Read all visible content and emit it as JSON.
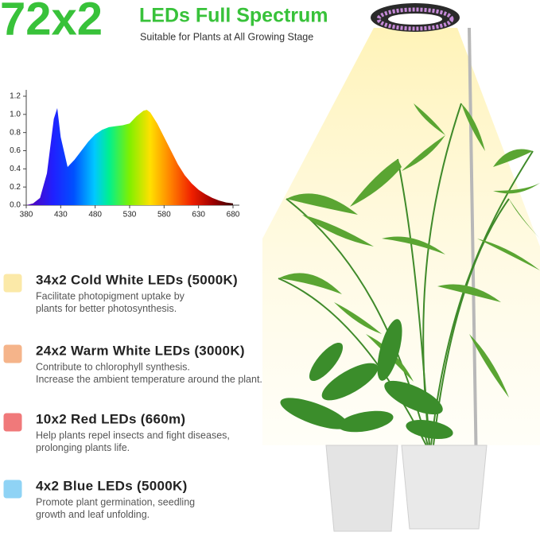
{
  "header": {
    "big": "72x2",
    "title": "LEDs Full Spectrum",
    "subtitle": "Suitable for Plants at All Growing Stage",
    "color": "#38c23a"
  },
  "chart_data": {
    "type": "area",
    "x": [
      380,
      390,
      400,
      410,
      420,
      425,
      430,
      440,
      450,
      460,
      470,
      480,
      490,
      500,
      510,
      520,
      530,
      540,
      550,
      555,
      560,
      570,
      580,
      590,
      600,
      610,
      620,
      630,
      640,
      650,
      660,
      670,
      680
    ],
    "values": [
      0,
      0.02,
      0.08,
      0.35,
      0.95,
      1.07,
      0.75,
      0.42,
      0.5,
      0.6,
      0.7,
      0.78,
      0.83,
      0.86,
      0.87,
      0.88,
      0.9,
      0.98,
      1.04,
      1.05,
      1.02,
      0.9,
      0.75,
      0.6,
      0.45,
      0.33,
      0.24,
      0.17,
      0.12,
      0.08,
      0.05,
      0.03,
      0.02
    ],
    "xlim": [
      380,
      680
    ],
    "ylim": [
      0,
      1.2
    ],
    "xticks": [
      380,
      430,
      480,
      530,
      580,
      630,
      680
    ],
    "yticks": [
      {
        "value": 0,
        "label": "0.0"
      },
      0.2,
      0.4,
      0.6,
      0.8,
      {
        "value": 1,
        "label": "1.0"
      },
      1.2
    ]
  },
  "items": [
    {
      "color": "#fbe9a8",
      "title": "34x2 Cold White LEDs (5000K)",
      "desc": [
        "Facilitate photopigment uptake by",
        "plants for better photosynthesis."
      ]
    },
    {
      "color": "#f5b48a",
      "title": "24x2 Warm White LEDs (3000K)",
      "desc": [
        "Contribute to chlorophyll synthesis.",
        "Increase the ambient temperature around the plant."
      ]
    },
    {
      "color": "#f0797a",
      "title": "10x2 Red LEDs (660m)",
      "desc": [
        "Help plants repel insects and fight diseases,",
        "prolonging plants life."
      ]
    },
    {
      "color": "#8fd3f5",
      "title": "4x2 Blue LEDs (5000K)",
      "desc": [
        "Promote plant germination, seedling",
        "growth and leaf unfolding."
      ]
    }
  ]
}
